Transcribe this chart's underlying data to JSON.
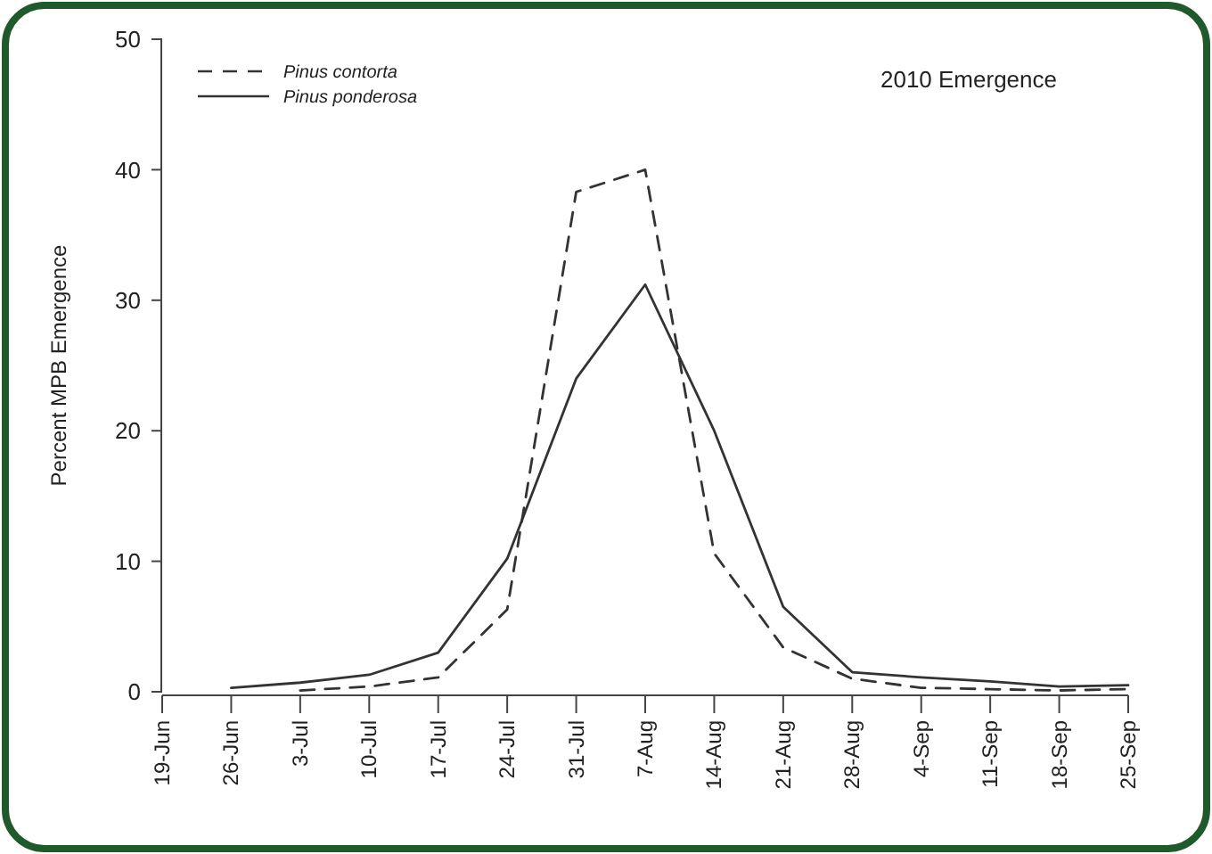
{
  "chart_data": {
    "type": "line",
    "title": "2010 Emergence",
    "ylabel": "Percent MPB Emergence",
    "categories": [
      "19-Jun",
      "26-Jun",
      "3-Jul",
      "10-Jul",
      "17-Jul",
      "24-Jul",
      "31-Jul",
      "7-Aug",
      "14-Aug",
      "21-Aug",
      "28-Aug",
      "4-Sep",
      "11-Sep",
      "18-Sep",
      "25-Sep"
    ],
    "series": [
      {
        "name": "Pinus contorta",
        "color": "#333333",
        "line_style": "dashed",
        "values": [
          null,
          null,
          0.1,
          0.4,
          1.1,
          6.3,
          38.3,
          40,
          10.6,
          3.4,
          1,
          0.3,
          0.2,
          0.1,
          0.2
        ]
      },
      {
        "name": "Pinus ponderosa",
        "color": "#333333",
        "line_style": "solid",
        "values": [
          null,
          0.3,
          0.7,
          1.3,
          3,
          10.2,
          24,
          31.2,
          20,
          6.5,
          1.5,
          1.1,
          0.8,
          0.4,
          0.5
        ]
      }
    ],
    "ylim": [
      0,
      50
    ],
    "yticks": [
      0,
      10,
      20,
      30,
      40,
      50
    ],
    "legend": "top left",
    "grid": false
  }
}
